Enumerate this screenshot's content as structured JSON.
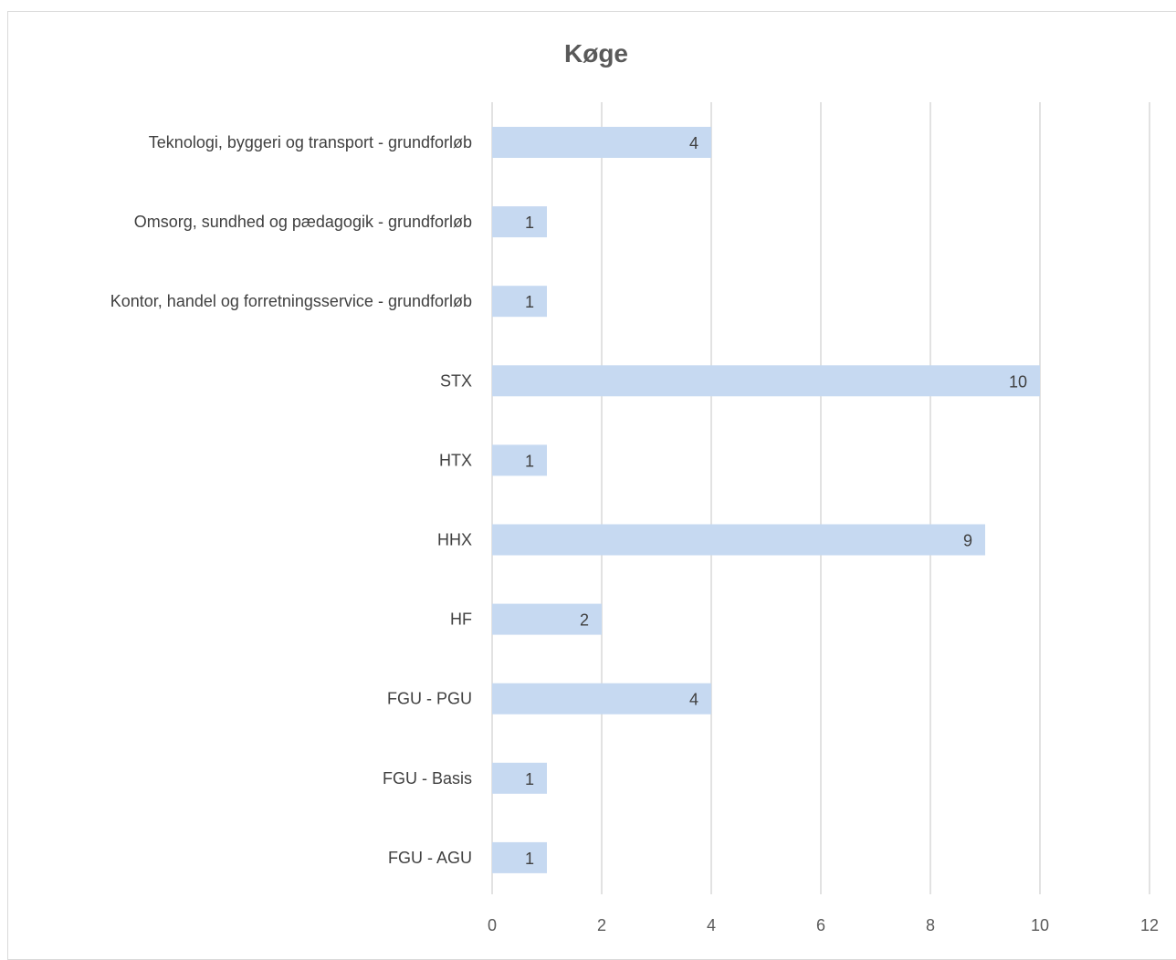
{
  "chart_data": {
    "type": "bar",
    "orientation": "horizontal",
    "title": "Køge",
    "xlabel": "",
    "ylabel": "",
    "categories": [
      "Teknologi, byggeri og transport - grundforløb",
      "Omsorg, sundhed og pædagogik - grundforløb",
      "Kontor, handel og forretningsservice - grundforløb",
      "STX",
      "HTX",
      "HHX",
      "HF",
      "FGU - PGU",
      "FGU - Basis",
      "FGU - AGU"
    ],
    "values": [
      4,
      1,
      1,
      10,
      1,
      9,
      2,
      4,
      1,
      1
    ],
    "xlim": [
      0,
      12
    ],
    "xticks": [
      0,
      2,
      4,
      6,
      8,
      10,
      12
    ],
    "grid": true,
    "data_labels": true,
    "legend": "none",
    "bar_color": "#c6d9f1"
  }
}
